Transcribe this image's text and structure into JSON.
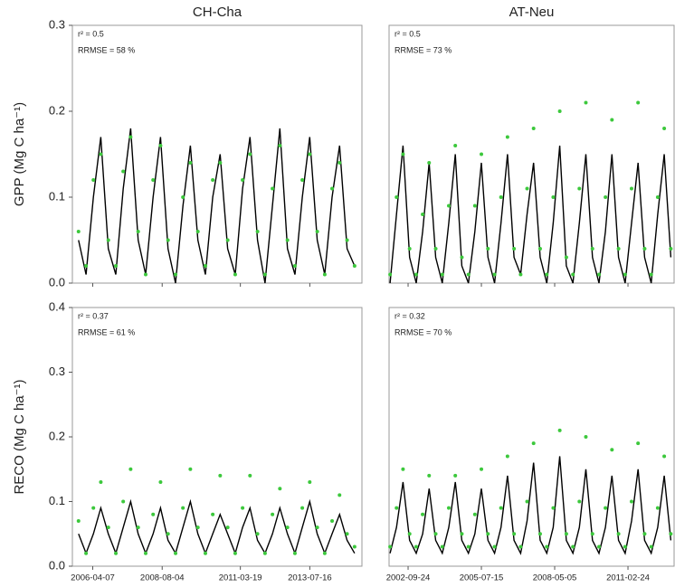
{
  "chart_data": [
    {
      "type": "line",
      "title": "CH-Cha",
      "ylabel": "GPP (Mg C ha⁻¹)",
      "annotations": [
        "r² = 0.5",
        "RRMSE = 58 %"
      ],
      "xlim": [
        "2005-08-01",
        "2015-04-15"
      ],
      "ylim": [
        0,
        0.3
      ],
      "yticks": [
        {
          "value": 0,
          "label": "0.0"
        },
        0.1,
        0.2,
        0.3
      ],
      "x": [
        "2005-10-15",
        "2006-01-15",
        "2006-04-15",
        "2006-07-15",
        "2006-10-15",
        "2007-01-15",
        "2007-04-15",
        "2007-07-15",
        "2007-10-15",
        "2008-01-15",
        "2008-04-15",
        "2008-07-15",
        "2008-10-15",
        "2009-01-15",
        "2009-04-15",
        "2009-07-15",
        "2009-10-15",
        "2010-01-15",
        "2010-04-15",
        "2010-07-15",
        "2010-10-15",
        "2011-01-15",
        "2011-04-15",
        "2011-07-15",
        "2011-10-15",
        "2012-01-15",
        "2012-04-15",
        "2012-07-15",
        "2012-10-15",
        "2013-01-15",
        "2013-04-15",
        "2013-07-15",
        "2013-10-15",
        "2014-01-15",
        "2014-04-15",
        "2014-07-15",
        "2014-10-15",
        "2015-01-15"
      ],
      "series": [
        {
          "style": "line",
          "color": "#000000",
          "values": [
            0.05,
            0.01,
            0.1,
            0.17,
            0.04,
            0.01,
            0.11,
            0.18,
            0.05,
            0.01,
            0.1,
            0.17,
            0.04,
            0.0,
            0.09,
            0.16,
            0.05,
            0.01,
            0.1,
            0.15,
            0.04,
            0.01,
            0.11,
            0.17,
            0.05,
            0.0,
            0.09,
            0.18,
            0.04,
            0.01,
            0.1,
            0.17,
            0.05,
            0.01,
            0.1,
            0.16,
            0.04,
            0.02
          ]
        },
        {
          "style": "points",
          "color": "#3cc83c",
          "values": [
            0.06,
            0.02,
            0.12,
            0.15,
            0.05,
            0.02,
            0.13,
            0.17,
            0.06,
            0.01,
            0.12,
            0.16,
            0.05,
            0.01,
            0.1,
            0.14,
            0.06,
            0.02,
            0.12,
            0.14,
            0.05,
            0.01,
            0.12,
            0.15,
            0.06,
            0.01,
            0.11,
            0.16,
            0.05,
            0.02,
            0.12,
            0.15,
            0.06,
            0.01,
            0.11,
            0.14,
            0.05,
            0.02
          ]
        }
      ]
    },
    {
      "type": "line",
      "title": "AT-Neu",
      "annotations": [
        "r² = 0.5",
        "RRMSE = 73 %"
      ],
      "xlim": [
        "2002-01-01",
        "2012-11-30"
      ],
      "ylim": [
        0,
        0.3
      ],
      "x": [
        "2002-01-15",
        "2002-04-15",
        "2002-07-15",
        "2002-10-15",
        "2003-01-15",
        "2003-04-15",
        "2003-07-15",
        "2003-10-15",
        "2004-01-15",
        "2004-04-15",
        "2004-07-15",
        "2004-10-15",
        "2005-01-15",
        "2005-04-15",
        "2005-07-15",
        "2005-10-15",
        "2006-01-15",
        "2006-04-15",
        "2006-07-15",
        "2006-10-15",
        "2007-01-15",
        "2007-04-15",
        "2007-07-15",
        "2007-10-15",
        "2008-01-15",
        "2008-04-15",
        "2008-07-15",
        "2008-10-15",
        "2009-01-15",
        "2009-04-15",
        "2009-07-15",
        "2009-10-15",
        "2010-01-15",
        "2010-04-15",
        "2010-07-15",
        "2010-10-15",
        "2011-01-15",
        "2011-04-15",
        "2011-07-15",
        "2011-10-15",
        "2012-01-15",
        "2012-04-15",
        "2012-07-15",
        "2012-10-15"
      ],
      "series": [
        {
          "style": "line",
          "color": "#000000",
          "values": [
            0.0,
            0.08,
            0.16,
            0.03,
            0.0,
            0.06,
            0.14,
            0.03,
            0.0,
            0.07,
            0.15,
            0.02,
            0.0,
            0.06,
            0.14,
            0.03,
            0.0,
            0.07,
            0.15,
            0.03,
            0.01,
            0.08,
            0.14,
            0.03,
            0.0,
            0.07,
            0.16,
            0.02,
            0.0,
            0.07,
            0.15,
            0.03,
            0.0,
            0.06,
            0.15,
            0.03,
            0.0,
            0.07,
            0.14,
            0.03,
            0.0,
            0.08,
            0.15,
            0.03
          ]
        },
        {
          "style": "points",
          "color": "#3cc83c",
          "values": [
            0.01,
            0.1,
            0.15,
            0.04,
            0.01,
            0.08,
            0.14,
            0.04,
            0.01,
            0.09,
            0.16,
            0.03,
            0.01,
            0.09,
            0.15,
            0.04,
            0.01,
            0.1,
            0.17,
            0.04,
            0.01,
            0.11,
            0.18,
            0.04,
            0.01,
            0.1,
            0.2,
            0.03,
            0.01,
            0.11,
            0.21,
            0.04,
            0.01,
            0.1,
            0.19,
            0.04,
            0.01,
            0.11,
            0.21,
            0.04,
            0.01,
            0.1,
            0.18,
            0.04
          ]
        }
      ]
    },
    {
      "type": "line",
      "ylabel": "RECO (Mg C ha⁻¹)",
      "annotations": [
        "r² = 0.37",
        "RRMSE = 61 %"
      ],
      "xlim": [
        "2005-08-01",
        "2015-04-15"
      ],
      "ylim": [
        0,
        0.4
      ],
      "yticks": [
        {
          "value": 0,
          "label": "0.0"
        },
        0.1,
        0.2,
        0.3,
        0.4
      ],
      "xticks": [
        "2006-04-07",
        "2008-08-04",
        "2011-03-19",
        "2013-07-16"
      ],
      "x": [
        "2005-10-15",
        "2006-01-15",
        "2006-04-15",
        "2006-07-15",
        "2006-10-15",
        "2007-01-15",
        "2007-04-15",
        "2007-07-15",
        "2007-10-15",
        "2008-01-15",
        "2008-04-15",
        "2008-07-15",
        "2008-10-15",
        "2009-01-15",
        "2009-04-15",
        "2009-07-15",
        "2009-10-15",
        "2010-01-15",
        "2010-04-15",
        "2010-07-15",
        "2010-10-15",
        "2011-01-15",
        "2011-04-15",
        "2011-07-15",
        "2011-10-15",
        "2012-01-15",
        "2012-04-15",
        "2012-07-15",
        "2012-10-15",
        "2013-01-15",
        "2013-04-15",
        "2013-07-15",
        "2013-10-15",
        "2014-01-15",
        "2014-04-15",
        "2014-07-15",
        "2014-10-15",
        "2015-01-15"
      ],
      "series": [
        {
          "style": "line",
          "color": "#000000",
          "values": [
            0.05,
            0.02,
            0.05,
            0.09,
            0.05,
            0.02,
            0.06,
            0.1,
            0.05,
            0.02,
            0.05,
            0.09,
            0.04,
            0.02,
            0.06,
            0.1,
            0.05,
            0.02,
            0.05,
            0.08,
            0.05,
            0.02,
            0.06,
            0.09,
            0.04,
            0.02,
            0.05,
            0.09,
            0.05,
            0.02,
            0.06,
            0.1,
            0.05,
            0.02,
            0.05,
            0.08,
            0.04,
            0.02
          ]
        },
        {
          "style": "points",
          "color": "#3cc83c",
          "values": [
            0.07,
            0.02,
            0.09,
            0.13,
            0.06,
            0.02,
            0.1,
            0.15,
            0.06,
            0.02,
            0.08,
            0.13,
            0.05,
            0.02,
            0.09,
            0.15,
            0.06,
            0.02,
            0.08,
            0.14,
            0.06,
            0.02,
            0.09,
            0.14,
            0.05,
            0.02,
            0.08,
            0.12,
            0.06,
            0.02,
            0.09,
            0.13,
            0.06,
            0.02,
            0.07,
            0.11,
            0.05,
            0.03
          ]
        }
      ]
    },
    {
      "type": "line",
      "annotations": [
        "r² = 0.32",
        "RRMSE = 70 %"
      ],
      "xlim": [
        "2002-01-01",
        "2012-11-30"
      ],
      "ylim": [
        0,
        0.4
      ],
      "xticks": [
        "2002-09-24",
        "2005-07-15",
        "2008-05-05",
        "2011-02-24"
      ],
      "x": [
        "2002-01-15",
        "2002-04-15",
        "2002-07-15",
        "2002-10-15",
        "2003-01-15",
        "2003-04-15",
        "2003-07-15",
        "2003-10-15",
        "2004-01-15",
        "2004-04-15",
        "2004-07-15",
        "2004-10-15",
        "2005-01-15",
        "2005-04-15",
        "2005-07-15",
        "2005-10-15",
        "2006-01-15",
        "2006-04-15",
        "2006-07-15",
        "2006-10-15",
        "2007-01-15",
        "2007-04-15",
        "2007-07-15",
        "2007-10-15",
        "2008-01-15",
        "2008-04-15",
        "2008-07-15",
        "2008-10-15",
        "2009-01-15",
        "2009-04-15",
        "2009-07-15",
        "2009-10-15",
        "2010-01-15",
        "2010-04-15",
        "2010-07-15",
        "2010-10-15",
        "2011-01-15",
        "2011-04-15",
        "2011-07-15",
        "2011-10-15",
        "2012-01-15",
        "2012-04-15",
        "2012-07-15",
        "2012-10-15"
      ],
      "series": [
        {
          "style": "line",
          "color": "#000000",
          "values": [
            0.02,
            0.06,
            0.13,
            0.04,
            0.02,
            0.05,
            0.12,
            0.04,
            0.02,
            0.06,
            0.13,
            0.04,
            0.02,
            0.05,
            0.12,
            0.04,
            0.02,
            0.06,
            0.14,
            0.04,
            0.02,
            0.07,
            0.16,
            0.04,
            0.02,
            0.06,
            0.17,
            0.04,
            0.02,
            0.06,
            0.15,
            0.04,
            0.02,
            0.06,
            0.14,
            0.04,
            0.02,
            0.07,
            0.15,
            0.04,
            0.02,
            0.06,
            0.14,
            0.04
          ]
        },
        {
          "style": "points",
          "color": "#3cc83c",
          "values": [
            0.03,
            0.09,
            0.15,
            0.05,
            0.03,
            0.08,
            0.14,
            0.05,
            0.03,
            0.09,
            0.14,
            0.05,
            0.03,
            0.08,
            0.15,
            0.05,
            0.03,
            0.09,
            0.17,
            0.05,
            0.03,
            0.1,
            0.19,
            0.05,
            0.03,
            0.09,
            0.21,
            0.05,
            0.03,
            0.1,
            0.2,
            0.05,
            0.03,
            0.09,
            0.18,
            0.05,
            0.03,
            0.1,
            0.19,
            0.05,
            0.03,
            0.09,
            0.17,
            0.05
          ]
        }
      ]
    }
  ]
}
